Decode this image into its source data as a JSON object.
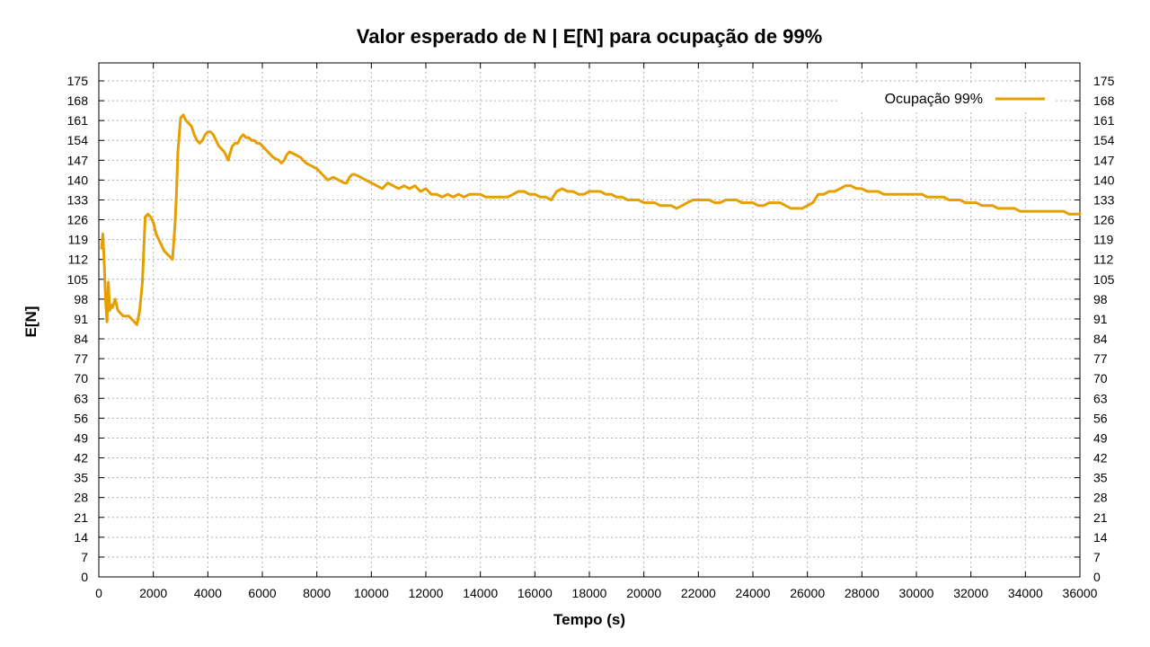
{
  "chart_data": {
    "type": "line",
    "title": "Valor esperado de N | E[N] para ocupação de 99%",
    "xlabel": "Tempo (s)",
    "ylabel": "E[N]",
    "xlim": [
      0,
      36000
    ],
    "ylim": [
      0,
      175
    ],
    "x_ticks": [
      0,
      2000,
      4000,
      6000,
      8000,
      10000,
      12000,
      14000,
      16000,
      18000,
      20000,
      22000,
      24000,
      26000,
      28000,
      30000,
      32000,
      34000,
      36000
    ],
    "y_ticks": [
      0,
      7,
      14,
      21,
      28,
      35,
      42,
      49,
      56,
      63,
      70,
      77,
      84,
      91,
      98,
      105,
      112,
      119,
      126,
      133,
      140,
      147,
      154,
      161,
      168,
      175
    ],
    "grid": true,
    "legend_position": "top-right",
    "series": [
      {
        "name": "Ocupação 99%",
        "color": "#e69f00",
        "x": [
          100,
          150,
          200,
          250,
          300,
          350,
          400,
          450,
          500,
          600,
          700,
          800,
          900,
          1000,
          1100,
          1200,
          1300,
          1400,
          1500,
          1600,
          1700,
          1800,
          1900,
          2000,
          2100,
          2200,
          2300,
          2400,
          2500,
          2600,
          2700,
          2750,
          2800,
          2850,
          2900,
          3000,
          3100,
          3200,
          3300,
          3400,
          3500,
          3600,
          3700,
          3800,
          3900,
          4000,
          4100,
          4200,
          4300,
          4400,
          4500,
          4600,
          4700,
          4750,
          4800,
          4900,
          5000,
          5100,
          5200,
          5300,
          5400,
          5500,
          5600,
          5700,
          5800,
          5900,
          6000,
          6200,
          6400,
          6600,
          6700,
          6800,
          6900,
          7000,
          7200,
          7400,
          7600,
          7800,
          8000,
          8200,
          8400,
          8600,
          8800,
          9000,
          9100,
          9200,
          9300,
          9400,
          9600,
          9800,
          10000,
          10200,
          10400,
          10600,
          10800,
          11000,
          11200,
          11400,
          11600,
          11800,
          12000,
          12200,
          12400,
          12600,
          12800,
          13000,
          13200,
          13400,
          13600,
          13800,
          14000,
          14200,
          14400,
          14600,
          14800,
          15000,
          15200,
          15400,
          15600,
          15800,
          16000,
          16200,
          16400,
          16600,
          16800,
          17000,
          17200,
          17400,
          17600,
          17800,
          18000,
          18200,
          18400,
          18600,
          18800,
          19000,
          19200,
          19400,
          19600,
          19800,
          20000,
          20200,
          20400,
          20600,
          20800,
          21000,
          21200,
          21400,
          21600,
          21800,
          22000,
          22200,
          22400,
          22600,
          22800,
          23000,
          23200,
          23400,
          23600,
          23800,
          24000,
          24200,
          24400,
          24600,
          24800,
          25000,
          25200,
          25400,
          25600,
          25800,
          26000,
          26200,
          26400,
          26600,
          26800,
          27000,
          27200,
          27400,
          27600,
          27800,
          28000,
          28200,
          28400,
          28600,
          28800,
          29000,
          29200,
          29400,
          29600,
          29800,
          30000,
          30200,
          30400,
          30600,
          30800,
          31000,
          31200,
          31400,
          31600,
          31800,
          32000,
          32200,
          32400,
          32600,
          32800,
          33000,
          33200,
          33400,
          33600,
          33800,
          34000,
          34200,
          34400,
          34600,
          34800,
          35000,
          35200,
          35400,
          35600,
          35800,
          36000
        ],
        "values": [
          116,
          121,
          110,
          97,
          90,
          104,
          94,
          96,
          95,
          98,
          94,
          93,
          92,
          92,
          92,
          91,
          90,
          89,
          94,
          104,
          127,
          128,
          127,
          125,
          121,
          119,
          117,
          115,
          114,
          113,
          112,
          118,
          125,
          135,
          150,
          162,
          163,
          161,
          160,
          159,
          156,
          154,
          153,
          154,
          156,
          157,
          157,
          156,
          154,
          152,
          151,
          150,
          148,
          147,
          149,
          152,
          153,
          153,
          155,
          156,
          155,
          155,
          154,
          154,
          153,
          153,
          152,
          150,
          148,
          147,
          146,
          147,
          149,
          150,
          149,
          148,
          146,
          145,
          144,
          142,
          140,
          141,
          140,
          139,
          139,
          141,
          142,
          142,
          141,
          140,
          139,
          138,
          137,
          139,
          138,
          137,
          138,
          137,
          138,
          136,
          137,
          135,
          135,
          134,
          135,
          134,
          135,
          134,
          135,
          135,
          135,
          134,
          134,
          134,
          134,
          134,
          135,
          136,
          136,
          135,
          135,
          134,
          134,
          133,
          136,
          137,
          136,
          136,
          135,
          135,
          136,
          136,
          136,
          135,
          135,
          134,
          134,
          133,
          133,
          133,
          132,
          132,
          132,
          131,
          131,
          131,
          130,
          131,
          132,
          133,
          133,
          133,
          133,
          132,
          132,
          133,
          133,
          133,
          132,
          132,
          132,
          131,
          131,
          132,
          132,
          132,
          131,
          130,
          130,
          130,
          131,
          132,
          135,
          135,
          136,
          136,
          137,
          138,
          138,
          137,
          137,
          136,
          136,
          136,
          135,
          135,
          135,
          135,
          135,
          135,
          135,
          135,
          134,
          134,
          134,
          134,
          133,
          133,
          133,
          132,
          132,
          132,
          131,
          131,
          131,
          130,
          130,
          130,
          130,
          129,
          129,
          129,
          129,
          129,
          129,
          129,
          129,
          129,
          128,
          128,
          128
        ]
      }
    ]
  }
}
